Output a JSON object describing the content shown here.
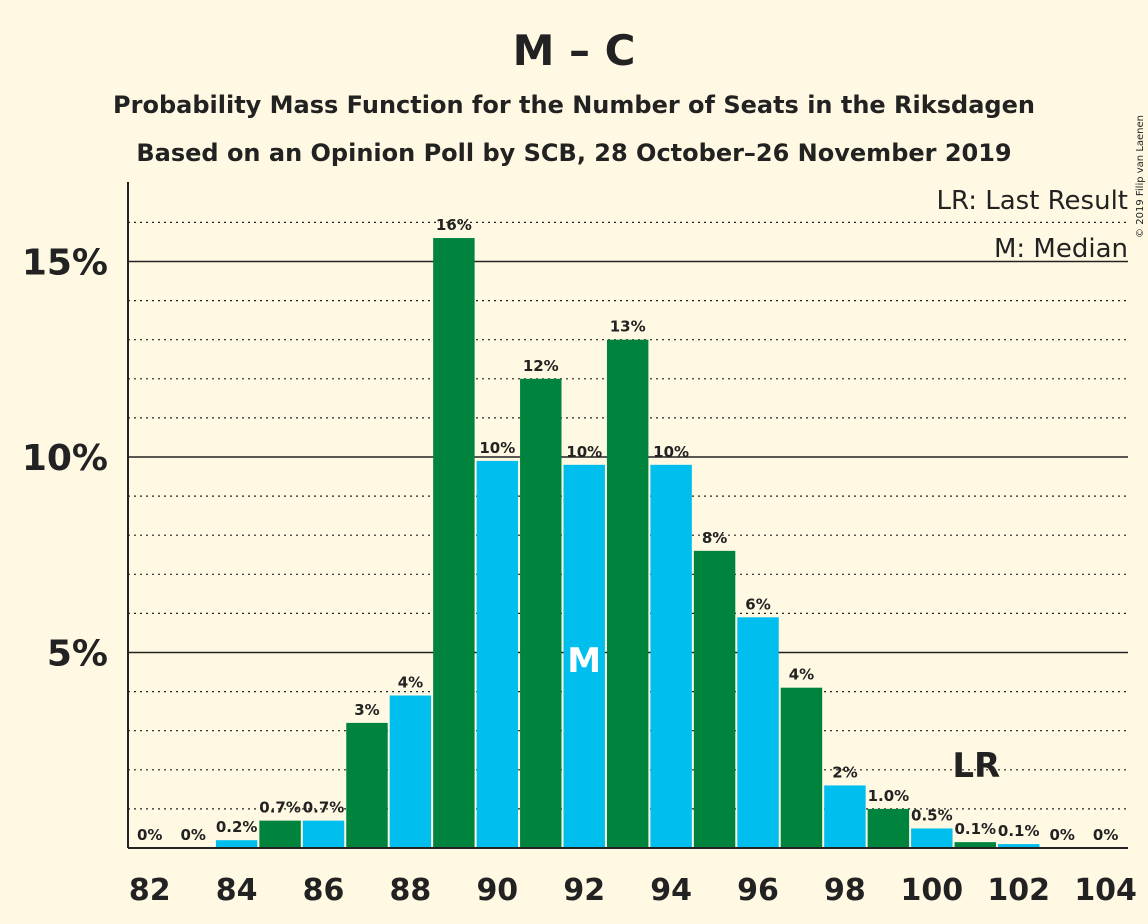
{
  "chart_data": {
    "type": "bar",
    "title": "M – C",
    "subtitle": "Probability Mass Function for the Number of Seats in the Riksdagen",
    "subtitle2": "Based on an Opinion Poll by SCB, 28 October–26 November 2019",
    "copyright": "© 2019 Filip van Laenen",
    "x": [
      82,
      83,
      84,
      85,
      86,
      87,
      88,
      89,
      90,
      91,
      92,
      93,
      94,
      95,
      96,
      97,
      98,
      99,
      100,
      101,
      102,
      103,
      104
    ],
    "values": [
      0,
      0,
      0.2,
      0.7,
      0.7,
      3.2,
      3.9,
      15.6,
      9.9,
      12.0,
      9.8,
      13.0,
      9.8,
      7.6,
      5.9,
      4.1,
      1.6,
      1.0,
      0.5,
      0.15,
      0.1,
      0,
      0
    ],
    "data_labels": [
      "0%",
      "0%",
      "0.2%",
      "0.7%",
      "0.7%",
      "3%",
      "4%",
      "16%",
      "10%",
      "12%",
      "10%",
      "13%",
      "10%",
      "8%",
      "6%",
      "4%",
      "2%",
      "1.0%",
      "0.5%",
      "0.1%",
      "0.1%",
      "0%",
      "0%"
    ],
    "x_ticks": [
      "82",
      "84",
      "86",
      "88",
      "90",
      "92",
      "94",
      "96",
      "98",
      "100",
      "102",
      "104"
    ],
    "y_ticks": [
      "5%",
      "10%",
      "15%"
    ],
    "y_tick_values": [
      5,
      10,
      15
    ],
    "ylim": [
      0,
      17
    ],
    "median_seat": 92,
    "median_marker": "M",
    "last_result_seat": 101,
    "last_result_marker": "LR",
    "legend": [
      "LR: Last Result",
      "M: Median"
    ],
    "colors": {
      "green": "#00843D",
      "blue": "#00BFEE",
      "background": "#FFF9E3",
      "text": "#222222"
    }
  }
}
